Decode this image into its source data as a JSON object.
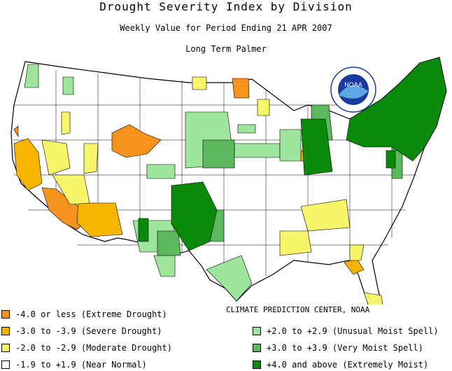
{
  "title": "Drought Severity Index by Division",
  "subtitle": "Weekly Value for Period Ending 21 APR 2007",
  "index_name": "Long Term Palmer",
  "logo_text": "NOAA",
  "credit": "CLIMATE PREDICTION CENTER, NOAA",
  "legend": [
    {
      "label": "-4.0 or less (Extreme Drought)",
      "color": "#f5931e"
    },
    {
      "label": "-3.0 to -3.9 (Severe Drought)",
      "color": "#f7b500"
    },
    {
      "label": "-2.0 to -2.9 (Moderate Drought)",
      "color": "#f7f56a"
    },
    {
      "label": "-1.9 to +1.9 (Near Normal)",
      "color": "#ffffff"
    },
    {
      "label": "+2.0 to +2.9 (Unusual Moist Spell)",
      "color": "#9ee69e"
    },
    {
      "label": "+3.0 to +3.9 (Very Moist Spell)",
      "color": "#5cb85c"
    },
    {
      "label": "+4.0 and above (Extremely Moist)",
      "color": "#0a8a0a"
    }
  ]
}
